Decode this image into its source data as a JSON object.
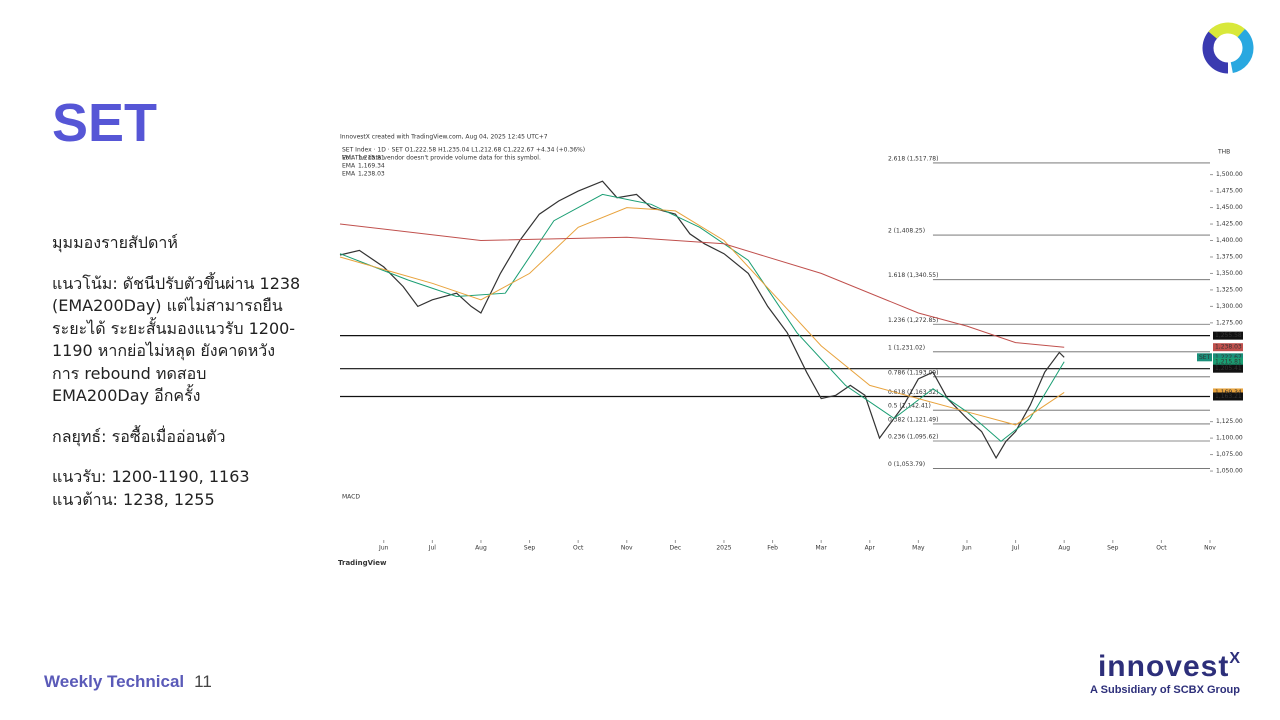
{
  "slide": {
    "title": "SET",
    "body": [
      "มุมมองรายสัปดาห์",
      "แนวโน้ม: ดัชนีปรับตัวขึ้นผ่าน 1238",
      "(EMA200Day) แต่ไม่สามารถยืน",
      "ระยะได้ ระยะสั้นมองแนวรับ 1200-",
      "1190 หากย่อไม่หลุด ยังคาดหวัง",
      "การ rebound ทดสอบ",
      "EMA200Day อีกครั้ง",
      "กลยุทธ์: รอซื้อเมื่ออ่อนตัว",
      "แนวรับ: 1200-1190, 1163",
      "แนวต้าน: 1238, 1255"
    ],
    "footer": {
      "section": "Weekly Technical",
      "page": "11"
    },
    "brand": {
      "name": "innovest",
      "mark": "X",
      "tagline": "A Subsidiary of SCBX Group"
    }
  },
  "chart_data": {
    "type": "line",
    "credit": "InnovestX created with TradingView.com, Aug 04, 2025 12:45 UTC+7",
    "symbol_line": "SET Index · 1D · SET   O1,222.58  H1,235.04  L1,212.68  C1,222.67  +4.34 (+0.36%)",
    "volume_note": "Vol: The data vendor doesn't provide volume data for this symbol.",
    "currency": "THB",
    "watermark": "TradingView",
    "xlim": [
      -0.9,
      17
    ],
    "ylim": [
      1044,
      1545
    ],
    "xticks": [
      {
        "value": 0,
        "label": "Jun"
      },
      {
        "value": 1,
        "label": "Jul"
      },
      {
        "value": 2,
        "label": "Aug"
      },
      {
        "value": 3,
        "label": "Sep"
      },
      {
        "value": 4,
        "label": "Oct"
      },
      {
        "value": 5,
        "label": "Nov"
      },
      {
        "value": 6,
        "label": "Dec"
      },
      {
        "value": 7,
        "label": "2025"
      },
      {
        "value": 8,
        "label": "Feb"
      },
      {
        "value": 9,
        "label": "Mar"
      },
      {
        "value": 10,
        "label": "Apr"
      },
      {
        "value": 11,
        "label": "May"
      },
      {
        "value": 12,
        "label": "Jun"
      },
      {
        "value": 13,
        "label": "Jul"
      },
      {
        "value": 14,
        "label": "Aug"
      },
      {
        "value": 15,
        "label": "Sep"
      },
      {
        "value": 16,
        "label": "Oct"
      },
      {
        "value": 17,
        "label": "Nov"
      }
    ],
    "yticks": [
      {
        "value": 1500,
        "label": "1,500.00"
      },
      {
        "value": 1475,
        "label": "1,475.00"
      },
      {
        "value": 1450,
        "label": "1,450.00"
      },
      {
        "value": 1425,
        "label": "1,425.00"
      },
      {
        "value": 1400,
        "label": "1,400.00"
      },
      {
        "value": 1375,
        "label": "1,375.00"
      },
      {
        "value": 1350,
        "label": "1,350.00"
      },
      {
        "value": 1325,
        "label": "1,325.00"
      },
      {
        "value": 1300,
        "label": "1,300.00"
      },
      {
        "value": 1275,
        "label": "1,275.00"
      },
      {
        "value": 1125,
        "label": "1,125.00"
      },
      {
        "value": 1100,
        "label": "1,100.00"
      },
      {
        "value": 1075,
        "label": "1,075.00"
      },
      {
        "value": 1050,
        "label": "1,050.00"
      }
    ],
    "series": [
      {
        "name": "SET",
        "color": "#333333",
        "x": [
          -0.9,
          -0.5,
          0,
          0.4,
          0.7,
          1.0,
          1.5,
          1.8,
          2.0,
          2.4,
          2.8,
          3.2,
          3.6,
          4.0,
          4.5,
          4.8,
          5.2,
          5.5,
          6.0,
          6.3,
          6.6,
          7.0,
          7.5,
          7.9,
          8.3,
          8.7,
          9.0,
          9.3,
          9.6,
          9.9,
          10.2,
          10.4,
          10.7,
          11.0,
          11.3,
          11.6,
          12.0,
          12.3,
          12.6,
          12.8,
          13.0,
          13.3,
          13.6,
          13.9,
          14.0
        ],
        "values": [
          1378,
          1385,
          1360,
          1330,
          1300,
          1310,
          1320,
          1300,
          1290,
          1350,
          1400,
          1440,
          1460,
          1475,
          1490,
          1465,
          1470,
          1450,
          1440,
          1410,
          1395,
          1380,
          1350,
          1300,
          1260,
          1200,
          1160,
          1165,
          1180,
          1165,
          1100,
          1120,
          1150,
          1190,
          1200,
          1160,
          1130,
          1110,
          1070,
          1095,
          1110,
          1150,
          1200,
          1230,
          1222.67
        ]
      },
      {
        "name": "EMA",
        "value_label": "1,215.81",
        "color": "#1a9e73",
        "x": [
          -0.9,
          0.5,
          1.5,
          2.5,
          3.5,
          4.5,
          5.5,
          6.5,
          7.5,
          8.5,
          9.5,
          10.5,
          11.3,
          12.0,
          12.7,
          13.3,
          14.0
        ],
        "values": [
          1380,
          1340,
          1315,
          1320,
          1430,
          1470,
          1455,
          1420,
          1370,
          1260,
          1180,
          1130,
          1175,
          1140,
          1095,
          1130,
          1215.81
        ]
      },
      {
        "name": "EMA",
        "value_label": "1,169.34",
        "color": "#e8a33d",
        "x": [
          -0.9,
          1,
          2,
          3,
          4,
          5,
          6,
          7,
          8,
          9,
          10,
          11,
          12,
          13,
          14
        ],
        "values": [
          1375,
          1335,
          1310,
          1350,
          1420,
          1450,
          1445,
          1400,
          1320,
          1240,
          1180,
          1160,
          1140,
          1120,
          1169.34
        ]
      },
      {
        "name": "EMA",
        "value_label": "1,238.03",
        "color": "#c0504d",
        "x": [
          -0.9,
          2,
          5,
          7,
          9,
          11,
          12,
          13,
          14
        ],
        "values": [
          1425,
          1400,
          1405,
          1395,
          1350,
          1290,
          1270,
          1245,
          1238.03
        ]
      }
    ],
    "fib_levels": [
      {
        "label": "2.618 (1,517.78)",
        "value": 1517.78
      },
      {
        "label": "2 (1,408.25)",
        "value": 1408.25
      },
      {
        "label": "1.618 (1,340.55)",
        "value": 1340.55
      },
      {
        "label": "1.236 (1,272.85)",
        "value": 1272.85
      },
      {
        "label": "1 (1,231.02)",
        "value": 1231.02
      },
      {
        "label": "0.786 (1,193.09)",
        "value": 1193.09
      },
      {
        "label": "0.618 (1,163.32)",
        "value": 1163.32
      },
      {
        "label": "0.5 (1,142.41)",
        "value": 1142.41
      },
      {
        "label": "0.382 (1,121.49)",
        "value": 1121.49
      },
      {
        "label": "0.236 (1,095.62)",
        "value": 1095.62
      },
      {
        "label": "0 (1,053.79)",
        "value": 1053.79
      }
    ],
    "fib_start": 11.3,
    "levels": [
      1255.58,
      1205.41,
      1163.21
    ],
    "price_labels": [
      {
        "label": "1,255.58",
        "value": 1255.58,
        "color": "#111111"
      },
      {
        "label": "1,238.03",
        "value": 1238.03,
        "color": "#c0504d"
      },
      {
        "tag": "SET",
        "label": "1,222.67",
        "value": 1222.67,
        "color": "#1a8f7a"
      },
      {
        "label": "1,215.81",
        "value": 1215.81,
        "color": "#1a9e73"
      },
      {
        "label": "1,205.41",
        "value": 1205.41,
        "color": "#111111"
      },
      {
        "label": "1,169.34",
        "value": 1169.34,
        "color": "#e8a33d"
      },
      {
        "label": "1,163.21",
        "value": 1163.21,
        "color": "#111111"
      }
    ],
    "macd_label": "MACD"
  }
}
